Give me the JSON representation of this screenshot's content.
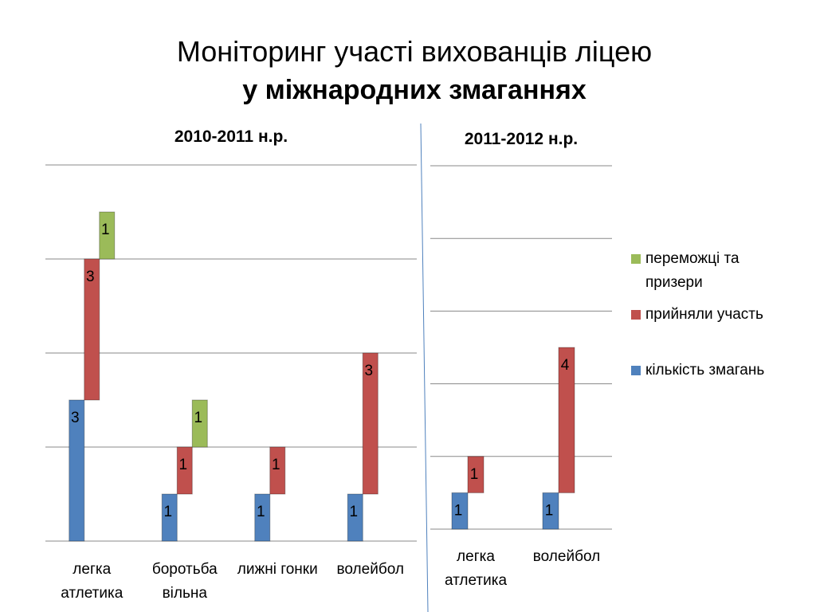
{
  "header": {
    "title": "Моніторинг участі вихованців ліцею",
    "subtitle": "у міжнародних змаганнях"
  },
  "chart_data": [
    {
      "type": "bar",
      "stacked": true,
      "title": "2010-2011 н.р.",
      "categories": [
        "легка атлетика",
        "боротьба вільна",
        "лижні гонки",
        "волейбол"
      ],
      "series": [
        {
          "name": "кількість змагань",
          "color": "#4f81bd",
          "values": [
            3,
            1,
            1,
            1
          ]
        },
        {
          "name": "прийняли участь",
          "color": "#c0504d",
          "values": [
            3,
            1,
            1,
            3
          ]
        },
        {
          "name": "переможці та призери",
          "color": "#9bbb59",
          "values": [
            1,
            1,
            null,
            null
          ]
        }
      ],
      "ylim": [
        0,
        8
      ],
      "yticks": [
        0,
        2,
        4,
        6,
        8
      ],
      "grid": true,
      "legend": "right"
    },
    {
      "type": "bar",
      "stacked": true,
      "title": "2011-2012 н.р.",
      "categories": [
        "легка атлетика",
        "волейбол"
      ],
      "series": [
        {
          "color": "#4f81bd",
          "values": [
            1,
            1
          ]
        },
        {
          "color": "#c0504d",
          "values": [
            1,
            4
          ]
        }
      ],
      "ylim": [
        0,
        10
      ],
      "yticks": [
        0,
        2,
        4,
        6,
        8,
        10
      ],
      "grid": true
    }
  ]
}
